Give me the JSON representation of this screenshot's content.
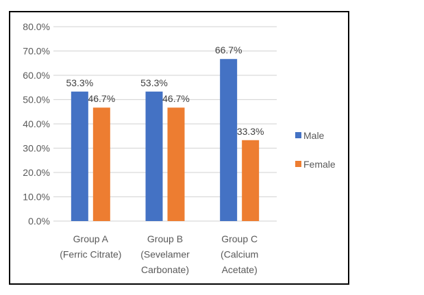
{
  "chart_data": {
    "type": "bar",
    "title": "",
    "xlabel": "",
    "ylabel": "",
    "categories": [
      [
        "Group A",
        "(Ferric Citrate)"
      ],
      [
        "Group B",
        "(Sevelamer",
        "Carbonate)"
      ],
      [
        "Group C",
        "(Calcium",
        "Acetate)"
      ]
    ],
    "series": [
      {
        "name": "Male",
        "color": "#4472C4",
        "values": [
          53.3,
          53.3,
          66.7
        ],
        "labels": [
          "53.3%",
          "53.3%",
          "66.7%"
        ]
      },
      {
        "name": "Female",
        "color": "#ED7D31",
        "values": [
          46.7,
          46.7,
          33.3
        ],
        "labels": [
          "46.7%",
          "46.7%",
          "33.3%"
        ]
      }
    ],
    "ylim": [
      0,
      80
    ],
    "yticks": [
      0,
      10,
      20,
      30,
      40,
      50,
      60,
      70,
      80
    ],
    "ytick_labels": [
      "0.0%",
      "10.0%",
      "20.0%",
      "30.0%",
      "40.0%",
      "50.0%",
      "60.0%",
      "70.0%",
      "80.0%"
    ],
    "grid": true,
    "gridline_color": "#D9D9D9",
    "legend_position": "right"
  }
}
